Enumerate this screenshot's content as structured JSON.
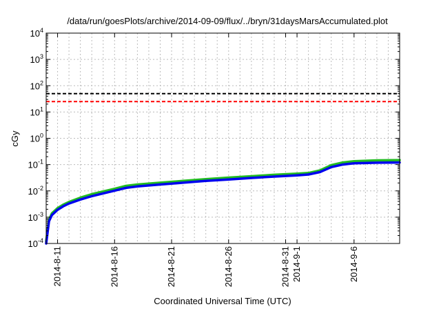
{
  "chart_data": {
    "type": "line",
    "title": "/data/run/goesPlots/archive/2014-09-09/flux/../bryn/31daysMarsAccumulated.plot",
    "xlabel": "Coordinated Universal Time (UTC)",
    "ylabel": "cGy",
    "x_range": [
      "2014-08-10T00:00",
      "2014-09-10T00:00"
    ],
    "x_ticks": [
      "2014-8-11",
      "2014-8-16",
      "2014-8-21",
      "2014-8-26",
      "2014-8-31",
      "2014-9-1",
      "2014-9-6"
    ],
    "x_tick_dates": [
      "2014-08-11",
      "2014-08-16",
      "2014-08-21",
      "2014-08-26",
      "2014-08-31",
      "2014-09-01",
      "2014-09-06"
    ],
    "y_scale": "log",
    "ylim": [
      0.0001,
      10000
    ],
    "y_ticks": [
      {
        "base": "10",
        "exp": "-4"
      },
      {
        "base": "10",
        "exp": "-3"
      },
      {
        "base": "10",
        "exp": "-2"
      },
      {
        "base": "10",
        "exp": "-1"
      },
      {
        "base": "10",
        "exp": "0"
      },
      {
        "base": "10",
        "exp": "1"
      },
      {
        "base": "10",
        "exp": "2"
      },
      {
        "base": "10",
        "exp": "3"
      },
      {
        "base": "10",
        "exp": "4"
      }
    ],
    "grid": true,
    "reference_lines": [
      {
        "y": 50,
        "color": "#000000",
        "style": "dashed"
      },
      {
        "y": 25,
        "color": "#ff0000",
        "style": "dashed"
      }
    ],
    "series": [
      {
        "color": "#22bb22",
        "x": [
          "2014-08-10T00:00",
          "2014-08-10T06:00",
          "2014-08-10T12:00",
          "2014-08-11T00:00",
          "2014-08-11T12:00",
          "2014-08-12T00:00",
          "2014-08-13T00:00",
          "2014-08-14T00:00",
          "2014-08-15T00:00",
          "2014-08-16T00:00",
          "2014-08-17T00:00",
          "2014-08-18T00:00",
          "2014-08-20T00:00",
          "2014-08-22T00:00",
          "2014-08-24T00:00",
          "2014-08-26T00:00",
          "2014-08-28T00:00",
          "2014-08-30T00:00",
          "2014-09-01T00:00",
          "2014-09-02T00:00",
          "2014-09-03T00:00",
          "2014-09-04T00:00",
          "2014-09-05T00:00",
          "2014-09-06T00:00",
          "2014-09-08T00:00",
          "2014-09-10T00:00"
        ],
        "y": [
          0.00012,
          0.0008,
          0.0014,
          0.0022,
          0.003,
          0.0038,
          0.0055,
          0.0075,
          0.0095,
          0.012,
          0.0155,
          0.0175,
          0.0205,
          0.024,
          0.028,
          0.032,
          0.036,
          0.041,
          0.045,
          0.048,
          0.06,
          0.095,
          0.12,
          0.135,
          0.145,
          0.148
        ]
      },
      {
        "color": "#0000ee",
        "x": [
          "2014-08-10T00:00",
          "2014-08-10T06:00",
          "2014-08-10T12:00",
          "2014-08-11T00:00",
          "2014-08-11T12:00",
          "2014-08-12T00:00",
          "2014-08-13T00:00",
          "2014-08-14T00:00",
          "2014-08-15T00:00",
          "2014-08-16T00:00",
          "2014-08-17T00:00",
          "2014-08-18T00:00",
          "2014-08-20T00:00",
          "2014-08-22T00:00",
          "2014-08-24T00:00",
          "2014-08-26T00:00",
          "2014-08-28T00:00",
          "2014-08-30T00:00",
          "2014-09-01T00:00",
          "2014-09-02T00:00",
          "2014-09-03T00:00",
          "2014-09-04T00:00",
          "2014-09-05T00:00",
          "2014-09-06T00:00",
          "2014-09-08T00:00",
          "2014-09-10T00:00"
        ],
        "y": [
          0.0001,
          0.0007,
          0.0012,
          0.0019,
          0.0026,
          0.0033,
          0.0047,
          0.0063,
          0.008,
          0.0102,
          0.013,
          0.0148,
          0.0175,
          0.0205,
          0.024,
          0.027,
          0.031,
          0.035,
          0.039,
          0.042,
          0.052,
          0.08,
          0.1,
          0.112,
          0.118,
          0.12
        ]
      }
    ]
  }
}
